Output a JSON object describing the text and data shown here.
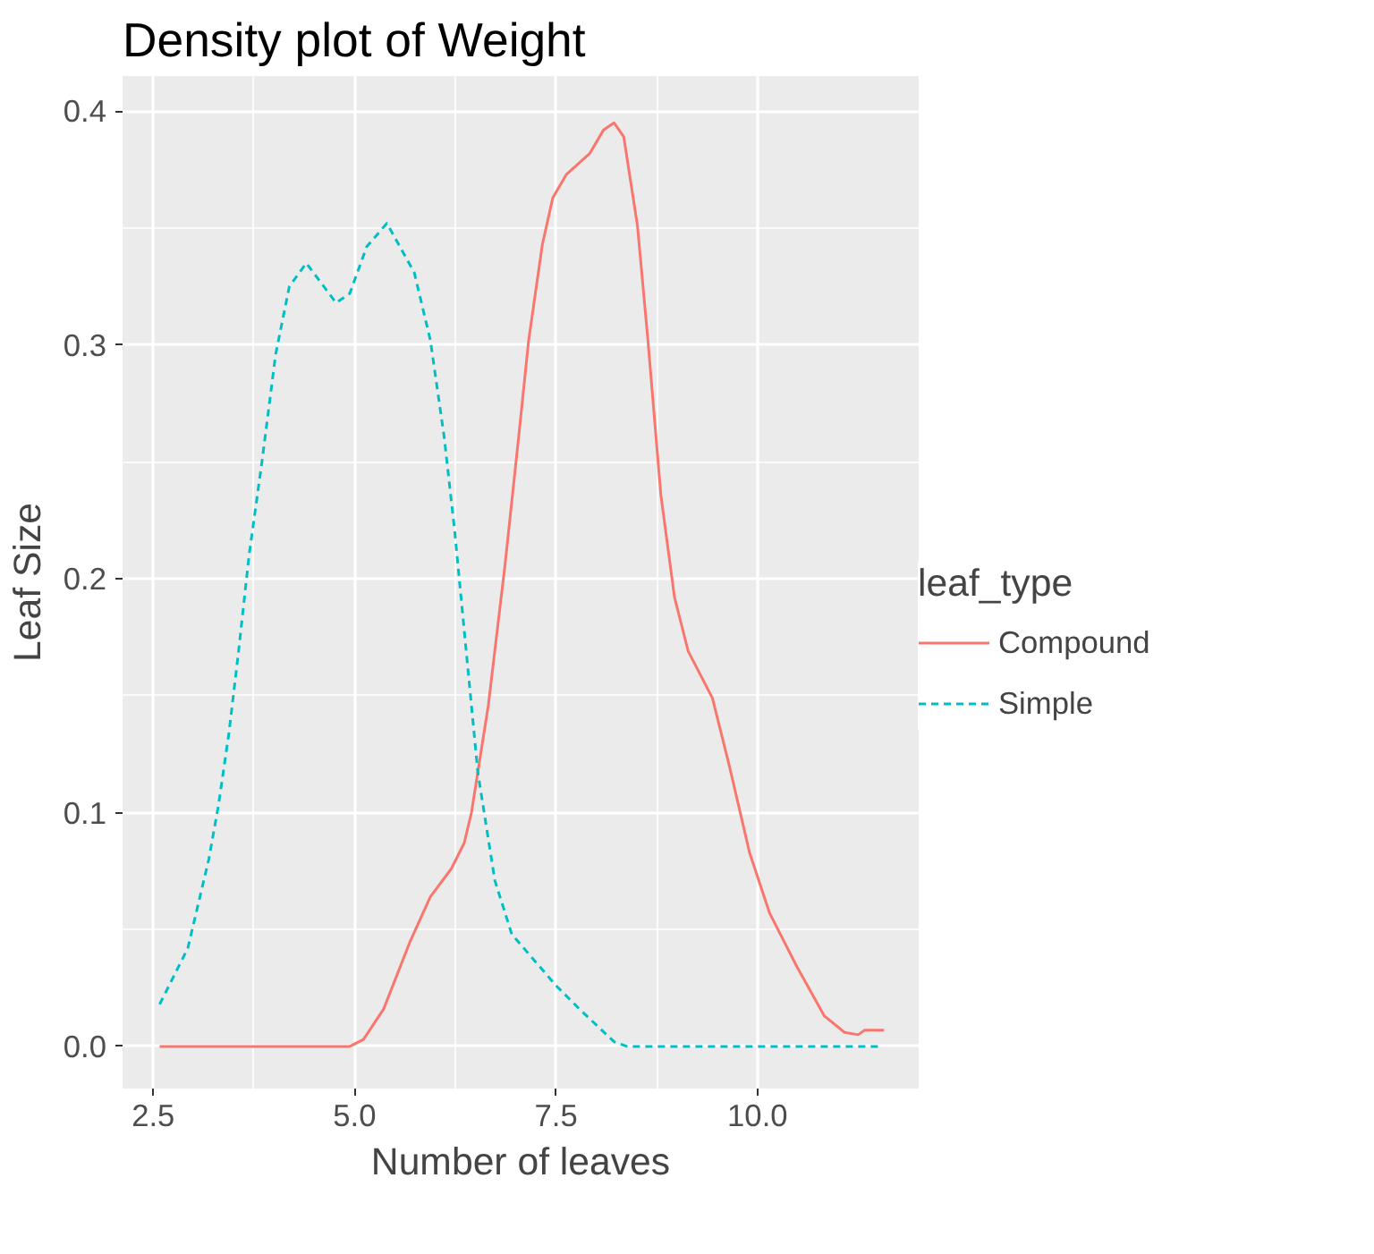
{
  "chart_data": {
    "type": "line",
    "title": "Density plot of Weight",
    "xlabel": "Number of leaves",
    "ylabel": "Leaf Size",
    "legend_title": "leaf_type",
    "legend": "right",
    "grid": true,
    "xlim": [
      2.12,
      12.0
    ],
    "ylim": [
      -0.018,
      0.415
    ],
    "xticks": [
      2.5,
      {
        "value": 5,
        "label": "5.0"
      },
      7.5,
      {
        "value": 10,
        "label": "10.0"
      }
    ],
    "yticks": [
      {
        "value": 0,
        "label": "0.0"
      },
      0.1,
      0.2,
      0.3,
      0.4
    ],
    "series": [
      {
        "name": "Compound",
        "color": "#f8766d",
        "line_style": "solid",
        "x": [
          2.58,
          4.94,
          5.11,
          5.36,
          5.69,
          5.94,
          6.2,
          6.36,
          6.45,
          6.66,
          6.87,
          7.04,
          7.16,
          7.33,
          7.46,
          7.63,
          7.92,
          8.09,
          8.22,
          8.34,
          8.51,
          8.64,
          8.8,
          8.97,
          9.14,
          9.44,
          9.65,
          9.9,
          10.15,
          10.49,
          10.83,
          11.08,
          11.25,
          11.33,
          11.57
        ],
        "values": [
          0,
          0,
          0.003,
          0.016,
          0.045,
          0.064,
          0.076,
          0.087,
          0.1,
          0.146,
          0.207,
          0.262,
          0.302,
          0.343,
          0.363,
          0.373,
          0.382,
          0.392,
          0.395,
          0.389,
          0.351,
          0.302,
          0.236,
          0.192,
          0.169,
          0.149,
          0.12,
          0.083,
          0.057,
          0.034,
          0.013,
          0.006,
          0.005,
          0.007,
          0.007
        ]
      },
      {
        "name": "Simple",
        "color": "#00bfc4",
        "line_style": "dashed",
        "x": [
          2.58,
          2.93,
          3.19,
          3.31,
          3.44,
          3.56,
          3.69,
          3.85,
          4.02,
          4.19,
          4.4,
          4.77,
          4.94,
          5.15,
          5.4,
          5.74,
          5.94,
          6.11,
          6.24,
          6.36,
          6.53,
          6.74,
          6.95,
          7.5,
          7.79,
          8.22,
          8.38,
          11.54
        ],
        "values": [
          0.018,
          0.042,
          0.08,
          0.103,
          0.134,
          0.169,
          0.21,
          0.25,
          0.296,
          0.325,
          0.335,
          0.318,
          0.322,
          0.342,
          0.352,
          0.331,
          0.302,
          0.261,
          0.221,
          0.178,
          0.117,
          0.071,
          0.048,
          0.026,
          0.016,
          0.002,
          0,
          0
        ]
      }
    ]
  }
}
